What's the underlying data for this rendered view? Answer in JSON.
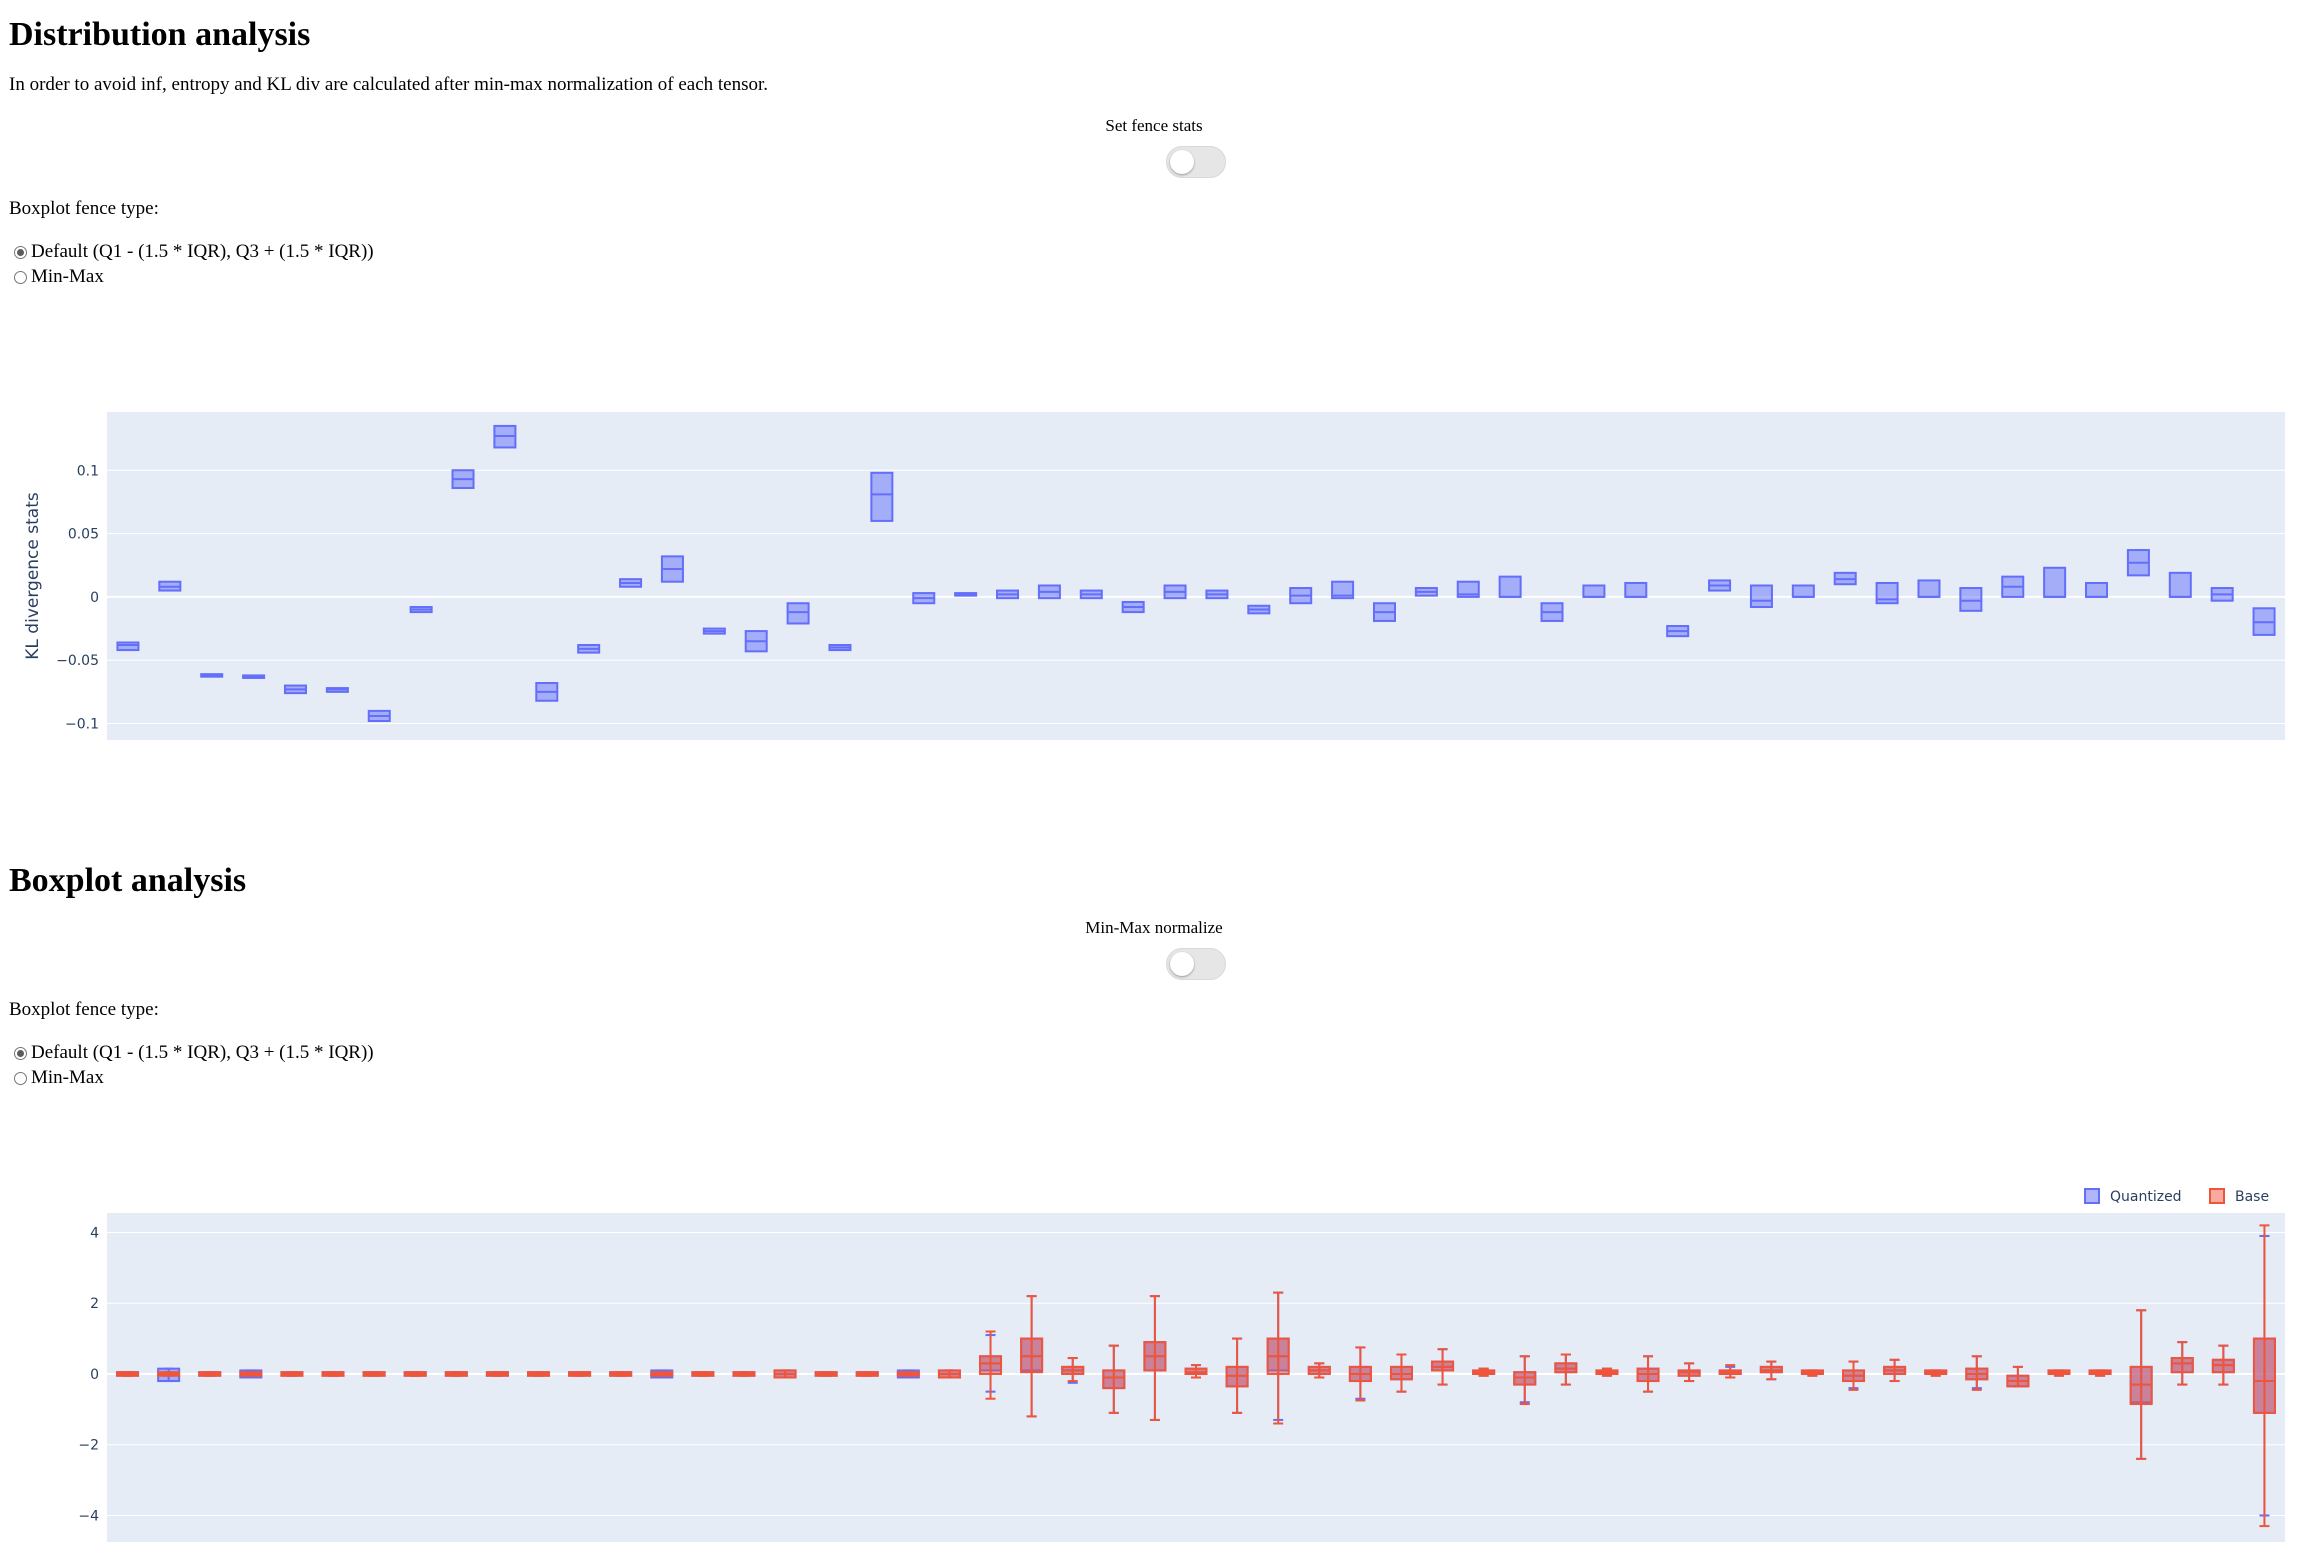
{
  "distribution": {
    "title": "Distribution analysis",
    "description": "In order to avoid inf, entropy and KL div are calculated after min-max normalization of each tensor.",
    "toggle_label": "Set fence stats",
    "fence_label": "Boxplot fence type:",
    "options": [
      "Default (Q1 - (1.5 * IQR), Q3 + (1.5 * IQR))",
      "Min-Max"
    ]
  },
  "boxplot": {
    "title": "Boxplot analysis",
    "toggle_label": "Min-Max normalize",
    "fence_label": "Boxplot fence type:",
    "options": [
      "Default (Q1 - (1.5 * IQR), Q3 + (1.5 * IQR))",
      "Min-Max"
    ]
  },
  "colors": {
    "quantized": "#636efa",
    "base": "#ef553b",
    "plot_bg": "#e5ecf6",
    "grid": "#ffffff"
  },
  "chart_data": [
    {
      "type": "box",
      "ylabel": "KL divergence stats",
      "ylim": [
        -0.113,
        0.146
      ],
      "yticks": [
        -0.1,
        -0.05,
        0,
        0.05,
        0.1
      ],
      "ytick_labels": [
        "−0.1",
        "−0.05",
        "0",
        "0.05",
        "0.1"
      ],
      "grid": true,
      "series": [
        {
          "name": "Quantized",
          "boxes": [
            [
              -0.042,
              -0.038,
              -0.036
            ],
            [
              0.005,
              0.008,
              0.012
            ],
            [
              -0.063,
              -0.062,
              -0.061
            ],
            [
              -0.064,
              -0.063,
              -0.062
            ],
            [
              -0.076,
              -0.073,
              -0.07
            ],
            [
              -0.075,
              -0.073,
              -0.072
            ],
            [
              -0.098,
              -0.094,
              -0.09
            ],
            [
              -0.012,
              -0.01,
              -0.008
            ],
            [
              0.086,
              0.093,
              0.1
            ],
            [
              0.118,
              0.127,
              0.135
            ],
            [
              -0.082,
              -0.075,
              -0.068
            ],
            [
              -0.044,
              -0.041,
              -0.038
            ],
            [
              0.008,
              0.011,
              0.014
            ],
            [
              0.012,
              0.022,
              0.032
            ],
            [
              -0.029,
              -0.027,
              -0.025
            ],
            [
              -0.043,
              -0.035,
              -0.027
            ],
            [
              -0.021,
              -0.012,
              -0.005
            ],
            [
              -0.042,
              -0.04,
              -0.038
            ],
            [
              0.06,
              0.081,
              0.098
            ],
            [
              -0.005,
              -0.001,
              0.003
            ],
            [
              0.001,
              0.002,
              0.003
            ],
            [
              -0.001,
              0.002,
              0.005
            ],
            [
              -0.001,
              0.004,
              0.009
            ],
            [
              -0.001,
              0.002,
              0.005
            ],
            [
              -0.012,
              -0.008,
              -0.004
            ],
            [
              -0.001,
              0.004,
              0.009
            ],
            [
              -0.001,
              0.002,
              0.005
            ],
            [
              -0.013,
              -0.01,
              -0.007
            ],
            [
              -0.005,
              0.001,
              0.007
            ],
            [
              -0.001,
              0.001,
              0.012
            ],
            [
              -0.019,
              -0.012,
              -0.005
            ],
            [
              0.001,
              0.004,
              0.007
            ],
            [
              0.0,
              0.002,
              0.012
            ],
            [
              0.0,
              0.0,
              0.016
            ],
            [
              -0.019,
              -0.012,
              -0.005
            ],
            [
              0.0,
              0.0,
              0.009
            ],
            [
              0.0,
              0.0,
              0.011
            ],
            [
              -0.031,
              -0.027,
              -0.023
            ],
            [
              0.005,
              0.009,
              0.013
            ],
            [
              -0.008,
              -0.003,
              0.009
            ],
            [
              0.0,
              0.0,
              0.009
            ],
            [
              0.01,
              0.014,
              0.019
            ],
            [
              -0.005,
              -0.002,
              0.011
            ],
            [
              0.0,
              0.0,
              0.013
            ],
            [
              -0.011,
              -0.003,
              0.007
            ],
            [
              0.0,
              0.008,
              0.016
            ],
            [
              0.0,
              0.0,
              0.023
            ],
            [
              0.0,
              0.0,
              0.011
            ],
            [
              0.017,
              0.027,
              0.037
            ],
            [
              0.0,
              0.0,
              0.019
            ],
            [
              -0.003,
              0.002,
              0.007
            ],
            [
              -0.03,
              -0.02,
              -0.009
            ]
          ]
        }
      ]
    },
    {
      "type": "box",
      "ylim": [
        -4.75,
        4.55
      ],
      "yticks": [
        -4,
        -2,
        0,
        2,
        4
      ],
      "ytick_labels": [
        "−4",
        "−2",
        "0",
        "2",
        "4"
      ],
      "grid": true,
      "legend_position": "top-right",
      "series": [
        {
          "name": "Quantized",
          "boxes": [
            [
              0,
              -0.05,
              0,
              0.05,
              0
            ],
            [
              0,
              -0.2,
              0,
              0.15,
              0
            ],
            [
              0,
              -0.05,
              0,
              0.05,
              0
            ],
            [
              0,
              -0.1,
              0,
              0.1,
              0
            ],
            [
              0,
              -0.05,
              0,
              0.05,
              0
            ],
            [
              0,
              -0.05,
              0,
              0.05,
              0
            ],
            [
              0,
              -0.05,
              0,
              0.05,
              0
            ],
            [
              0,
              -0.05,
              0,
              0.05,
              0
            ],
            [
              0,
              -0.05,
              0,
              0.05,
              0
            ],
            [
              0,
              -0.05,
              0,
              0.05,
              0
            ],
            [
              0,
              -0.05,
              0,
              0.05,
              0
            ],
            [
              0,
              -0.05,
              0,
              0.05,
              0
            ],
            [
              0,
              -0.05,
              0,
              0.05,
              0
            ],
            [
              0,
              -0.1,
              0,
              0.1,
              0
            ],
            [
              0,
              -0.05,
              0,
              0.05,
              0
            ],
            [
              0,
              -0.05,
              0,
              0.05,
              0
            ],
            [
              0,
              -0.1,
              0,
              0.1,
              0
            ],
            [
              0,
              -0.05,
              0,
              0.05,
              0
            ],
            [
              0,
              -0.05,
              0,
              0.05,
              0
            ],
            [
              0,
              -0.1,
              0,
              0.1,
              0
            ],
            [
              0,
              -0.1,
              0,
              0.1,
              0
            ],
            [
              -0.5,
              0.1,
              0.3,
              0.5,
              1.1
            ],
            [
              -1.2,
              0.1,
              0.5,
              1.0,
              2.2
            ],
            [
              -0.25,
              0.0,
              0.1,
              0.2,
              0.45
            ],
            [
              -1.1,
              -0.4,
              -0.1,
              0.1,
              0.8
            ],
            [
              -1.3,
              0.1,
              0.5,
              0.9,
              2.2
            ],
            [
              -0.1,
              0.0,
              0.05,
              0.15,
              0.25
            ],
            [
              -1.1,
              -0.35,
              -0.05,
              0.2,
              1.0
            ],
            [
              -1.3,
              0.1,
              0.5,
              1.0,
              2.3
            ],
            [
              -0.1,
              0.0,
              0.1,
              0.2,
              0.3
            ],
            [
              -0.7,
              -0.2,
              0.0,
              0.2,
              0.75
            ],
            [
              -0.5,
              -0.15,
              0.0,
              0.2,
              0.55
            ],
            [
              -0.3,
              0.1,
              0.2,
              0.35,
              0.7
            ],
            [
              -0.05,
              0,
              0.05,
              0.1,
              0.15
            ],
            [
              -0.8,
              -0.3,
              -0.1,
              0.05,
              0.5
            ],
            [
              -0.3,
              0.05,
              0.15,
              0.3,
              0.55
            ],
            [
              -0.05,
              0,
              0.05,
              0.1,
              0.15
            ],
            [
              -0.5,
              -0.2,
              0.0,
              0.15,
              0.5
            ],
            [
              -0.2,
              -0.05,
              0.05,
              0.1,
              0.3
            ],
            [
              -0.1,
              0.0,
              0.05,
              0.1,
              0.2
            ],
            [
              -0.15,
              0.05,
              0.1,
              0.2,
              0.35
            ],
            [
              -0.05,
              0,
              0.05,
              0.1,
              0.1
            ],
            [
              -0.4,
              -0.2,
              -0.05,
              0.1,
              0.35
            ],
            [
              -0.2,
              0.0,
              0.1,
              0.2,
              0.4
            ],
            [
              -0.05,
              0,
              0.05,
              0.1,
              0.1
            ],
            [
              -0.4,
              -0.15,
              0.0,
              0.15,
              0.5
            ],
            [
              -0.35,
              -0.35,
              -0.2,
              -0.05,
              0.2
            ],
            [
              -0.05,
              0,
              0.05,
              0.1,
              0.1
            ],
            [
              -0.05,
              0,
              0.05,
              0.1,
              0.1
            ],
            [
              -2.4,
              -0.8,
              -0.3,
              0.2,
              1.8
            ],
            [
              -0.3,
              0.05,
              0.3,
              0.45,
              0.9
            ],
            [
              -0.3,
              0.05,
              0.25,
              0.4,
              0.8
            ],
            [
              -4.0,
              -1.1,
              -0.2,
              1.0,
              3.9
            ]
          ]
        },
        {
          "name": "Base",
          "boxes": [
            [
              0,
              -0.05,
              0,
              0.05,
              0
            ],
            [
              0,
              -0.05,
              0,
              0.05,
              0
            ],
            [
              0,
              -0.05,
              0,
              0.05,
              0
            ],
            [
              0,
              -0.05,
              0,
              0.05,
              0
            ],
            [
              0,
              -0.05,
              0,
              0.05,
              0
            ],
            [
              0,
              -0.05,
              0,
              0.05,
              0
            ],
            [
              0,
              -0.05,
              0,
              0.05,
              0
            ],
            [
              0,
              -0.05,
              0,
              0.05,
              0
            ],
            [
              0,
              -0.05,
              0,
              0.05,
              0
            ],
            [
              0,
              -0.05,
              0,
              0.05,
              0
            ],
            [
              0,
              -0.05,
              0,
              0.05,
              0
            ],
            [
              0,
              -0.05,
              0,
              0.05,
              0
            ],
            [
              0,
              -0.05,
              0,
              0.05,
              0
            ],
            [
              0,
              -0.05,
              0,
              0.05,
              0
            ],
            [
              0,
              -0.05,
              0,
              0.05,
              0
            ],
            [
              0,
              -0.05,
              0,
              0.05,
              0
            ],
            [
              0,
              -0.1,
              0,
              0.1,
              0
            ],
            [
              0,
              -0.05,
              0,
              0.05,
              0
            ],
            [
              0,
              -0.05,
              0,
              0.05,
              0
            ],
            [
              0,
              -0.05,
              0,
              0.05,
              0
            ],
            [
              0,
              -0.1,
              0,
              0.1,
              0
            ],
            [
              -0.7,
              0.0,
              0.3,
              0.5,
              1.2
            ],
            [
              -1.2,
              0.05,
              0.5,
              1.0,
              2.2
            ],
            [
              -0.2,
              0.0,
              0.1,
              0.2,
              0.45
            ],
            [
              -1.1,
              -0.4,
              -0.1,
              0.1,
              0.8
            ],
            [
              -1.3,
              0.1,
              0.5,
              0.9,
              2.2
            ],
            [
              -0.1,
              0.0,
              0.05,
              0.15,
              0.25
            ],
            [
              -1.1,
              -0.35,
              -0.05,
              0.2,
              1.0
            ],
            [
              -1.4,
              0.0,
              0.5,
              1.0,
              2.3
            ],
            [
              -0.1,
              0.0,
              0.1,
              0.2,
              0.3
            ],
            [
              -0.75,
              -0.2,
              0.0,
              0.2,
              0.75
            ],
            [
              -0.5,
              -0.15,
              0.0,
              0.2,
              0.55
            ],
            [
              -0.3,
              0.1,
              0.2,
              0.35,
              0.7
            ],
            [
              -0.05,
              0,
              0.05,
              0.1,
              0.15
            ],
            [
              -0.85,
              -0.3,
              -0.1,
              0.05,
              0.5
            ],
            [
              -0.3,
              0.05,
              0.15,
              0.3,
              0.55
            ],
            [
              -0.05,
              0,
              0.05,
              0.1,
              0.15
            ],
            [
              -0.5,
              -0.2,
              0.0,
              0.15,
              0.5
            ],
            [
              -0.2,
              -0.05,
              0.05,
              0.1,
              0.3
            ],
            [
              -0.1,
              0.0,
              0.05,
              0.1,
              0.25
            ],
            [
              -0.15,
              0.05,
              0.1,
              0.2,
              0.35
            ],
            [
              -0.05,
              0,
              0.05,
              0.1,
              0.1
            ],
            [
              -0.45,
              -0.2,
              -0.05,
              0.1,
              0.35
            ],
            [
              -0.2,
              0.0,
              0.1,
              0.2,
              0.4
            ],
            [
              -0.05,
              0,
              0.05,
              0.1,
              0.1
            ],
            [
              -0.45,
              -0.15,
              0.0,
              0.15,
              0.5
            ],
            [
              -0.35,
              -0.35,
              -0.2,
              -0.05,
              0.2
            ],
            [
              -0.05,
              0,
              0.05,
              0.1,
              0.1
            ],
            [
              -0.05,
              0,
              0.05,
              0.1,
              0.1
            ],
            [
              -2.4,
              -0.85,
              -0.3,
              0.2,
              1.8
            ],
            [
              -0.3,
              0.05,
              0.3,
              0.45,
              0.9
            ],
            [
              -0.3,
              0.05,
              0.25,
              0.4,
              0.8
            ],
            [
              -4.3,
              -1.1,
              -0.2,
              1.0,
              4.2
            ]
          ]
        }
      ]
    }
  ]
}
